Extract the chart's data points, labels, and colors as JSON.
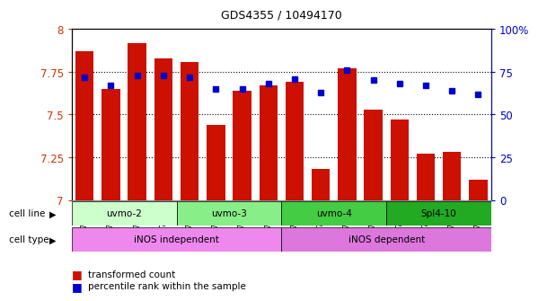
{
  "title": "GDS4355 / 10494170",
  "samples": [
    "GSM796425",
    "GSM796426",
    "GSM796427",
    "GSM796428",
    "GSM796429",
    "GSM796430",
    "GSM796431",
    "GSM796432",
    "GSM796417",
    "GSM796418",
    "GSM796419",
    "GSM796420",
    "GSM796421",
    "GSM796422",
    "GSM796423",
    "GSM796424"
  ],
  "bar_values": [
    7.87,
    7.65,
    7.92,
    7.83,
    7.81,
    7.44,
    7.64,
    7.67,
    7.69,
    7.18,
    7.77,
    7.53,
    7.47,
    7.27,
    7.28,
    7.12
  ],
  "percentile_values": [
    72,
    67,
    73,
    73,
    72,
    65,
    65,
    68,
    71,
    63,
    76,
    70,
    68,
    67,
    64,
    62
  ],
  "bar_color": "#cc1100",
  "dot_color": "#0000cc",
  "ylim": [
    7.0,
    8.0
  ],
  "y2lim": [
    0,
    100
  ],
  "yticks": [
    7.0,
    7.25,
    7.5,
    7.75,
    8.0
  ],
  "ytick_labels": [
    "7",
    "7.25",
    "7.5",
    "7.75",
    "8"
  ],
  "y2ticks": [
    0,
    25,
    50,
    75,
    100
  ],
  "y2tick_labels": [
    "0",
    "25",
    "50",
    "75",
    "100%"
  ],
  "cell_line_groups": [
    {
      "label": "uvmo-2",
      "start": 0,
      "end": 4,
      "color": "#ccffcc"
    },
    {
      "label": "uvmo-3",
      "start": 4,
      "end": 8,
      "color": "#88ee88"
    },
    {
      "label": "uvmo-4",
      "start": 8,
      "end": 12,
      "color": "#44cc44"
    },
    {
      "label": "Spl4-10",
      "start": 12,
      "end": 16,
      "color": "#22aa22"
    }
  ],
  "cell_type_groups": [
    {
      "label": "iNOS independent",
      "start": 0,
      "end": 8,
      "color": "#ee88ee"
    },
    {
      "label": "iNOS dependent",
      "start": 8,
      "end": 16,
      "color": "#dd77dd"
    }
  ],
  "legend_bar_label": "transformed count",
  "legend_dot_label": "percentile rank within the sample"
}
